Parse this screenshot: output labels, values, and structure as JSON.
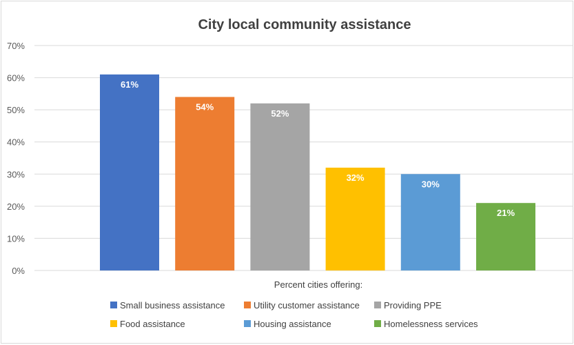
{
  "chart_data": {
    "type": "bar",
    "title": "City local community assistance",
    "xlabel": "Percent cities offering:",
    "ylabel": "",
    "ylim": [
      0,
      70
    ],
    "yticks": [
      0,
      10,
      20,
      30,
      40,
      50,
      60,
      70
    ],
    "ytick_labels": [
      "0%",
      "10%",
      "20%",
      "30%",
      "40%",
      "50%",
      "60%",
      "70%"
    ],
    "grid": true,
    "legend_position": "bottom",
    "categories": [
      "Small business assistance",
      "Utility customer assistance",
      "Providing PPE",
      "Food assistance",
      "Housing assistance",
      "Homelessness services"
    ],
    "values": [
      61,
      54,
      52,
      32,
      30,
      21
    ],
    "data_labels": [
      "61%",
      "54%",
      "52%",
      "32%",
      "30%",
      "21%"
    ],
    "colors": [
      "#4472c4",
      "#ed7d31",
      "#a5a5a5",
      "#ffc000",
      "#5b9bd5",
      "#70ad47"
    ]
  }
}
